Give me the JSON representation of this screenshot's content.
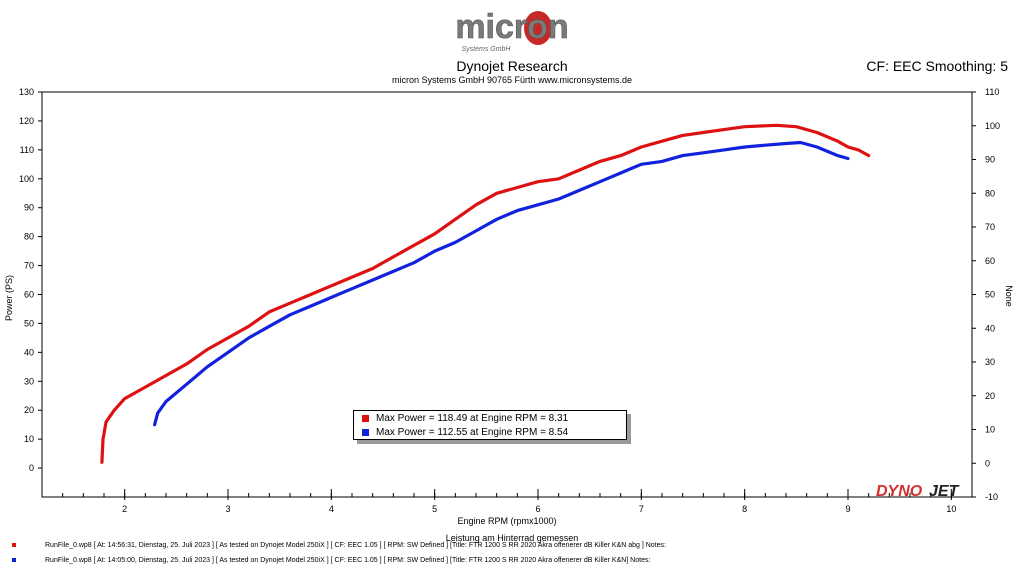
{
  "header": {
    "logo": {
      "text": "micron",
      "subtext": "Systems GmbH"
    },
    "title": "Dynojet Research",
    "subtitle": "micron Systems GmbH  90765 Fürth www.micronsystems.de",
    "cf_info": "CF: EEC Smoothing: 5"
  },
  "watermark": {
    "text_a": "DYNO",
    "text_b": "JET"
  },
  "legend": {
    "items": [
      {
        "text": "Max Power = 118.49 at Engine RPM = 8.31",
        "color": "#dd1111"
      },
      {
        "text": "Max Power = 112.55 at Engine RPM = 8.54",
        "color": "#1122dd"
      }
    ]
  },
  "footer": {
    "note": "Leistung am Hinterrad gemessen",
    "runs": [
      {
        "color": "#dd1111",
        "text": "RunFile_0.wp8 [ At: 14:56:31, Dienstag, 25. Juli 2023 ] [ As tested on Dynojet Model 250iX ] [ CF: EEC 1.05 ] [ RPM: SW Defined ] [Title: FTR 1200 S RR 2020 Akra offenerer dB Killer K&N abg ]  Notes:"
      },
      {
        "color": "#1122dd",
        "text": "RunFile_0.wp8 [ At: 14:05:00, Dienstag, 25. Juli 2023 ] [ As tested on Dynojet Model 250iX ] [ CF: EEC 1.05 ] [ RPM: SW Defined ] [Title: FTR 1200 S RR 2020 Akra offenerer dB Killer K&N]  Notes:"
      }
    ]
  },
  "chart_data": {
    "type": "line",
    "xlabel": "Engine RPM (rpmx1000)",
    "ylabel": "Power (PS)",
    "y2label": "None",
    "xlim": [
      1.2,
      10.2
    ],
    "ylim": [
      -10,
      130
    ],
    "y2lim": [
      -10,
      110
    ],
    "xticks": [
      2,
      3,
      4,
      5,
      6,
      7,
      8,
      9,
      10
    ],
    "yticks": [
      0,
      10,
      20,
      30,
      40,
      50,
      60,
      70,
      80,
      90,
      100,
      110,
      120,
      130
    ],
    "y2ticks": [
      -10,
      0,
      10,
      20,
      30,
      40,
      50,
      60,
      70,
      80,
      90,
      100,
      110
    ],
    "grid": false,
    "legend_position": "lower-center",
    "series": [
      {
        "color": "#dd1111",
        "x": [
          1.78,
          1.79,
          1.82,
          1.9,
          2.0,
          2.2,
          2.4,
          2.6,
          2.8,
          3.0,
          3.2,
          3.4,
          3.6,
          3.8,
          4.0,
          4.2,
          4.4,
          4.6,
          4.8,
          5.0,
          5.2,
          5.4,
          5.6,
          5.8,
          6.0,
          6.2,
          6.4,
          6.6,
          6.8,
          7.0,
          7.2,
          7.4,
          7.6,
          7.8,
          8.0,
          8.2,
          8.31,
          8.5,
          8.7,
          8.9,
          9.0,
          9.1,
          9.2
        ],
        "y": [
          2,
          10,
          16,
          20,
          24,
          28,
          32,
          36,
          41,
          45,
          49,
          54,
          57,
          60,
          63,
          66,
          69,
          73,
          77,
          81,
          86,
          91,
          95,
          97,
          99,
          100,
          103,
          106,
          108,
          111,
          113,
          115,
          116,
          117,
          118,
          118.3,
          118.49,
          118,
          116,
          113,
          111,
          110,
          108
        ]
      },
      {
        "color": "#1122dd",
        "x": [
          2.29,
          2.32,
          2.4,
          2.6,
          2.8,
          3.0,
          3.2,
          3.4,
          3.6,
          3.8,
          4.0,
          4.2,
          4.4,
          4.6,
          4.8,
          5.0,
          5.2,
          5.4,
          5.6,
          5.8,
          6.0,
          6.2,
          6.4,
          6.6,
          6.8,
          7.0,
          7.2,
          7.4,
          7.6,
          7.8,
          8.0,
          8.2,
          8.4,
          8.54,
          8.7,
          8.9,
          9.0
        ],
        "y": [
          15,
          19,
          23,
          29,
          35,
          40,
          45,
          49,
          53,
          56,
          59,
          62,
          65,
          68,
          71,
          75,
          78,
          82,
          86,
          89,
          91,
          93,
          96,
          99,
          102,
          105,
          106,
          108,
          109,
          110,
          111,
          111.6,
          112.2,
          112.55,
          111,
          108,
          107
        ]
      }
    ]
  }
}
